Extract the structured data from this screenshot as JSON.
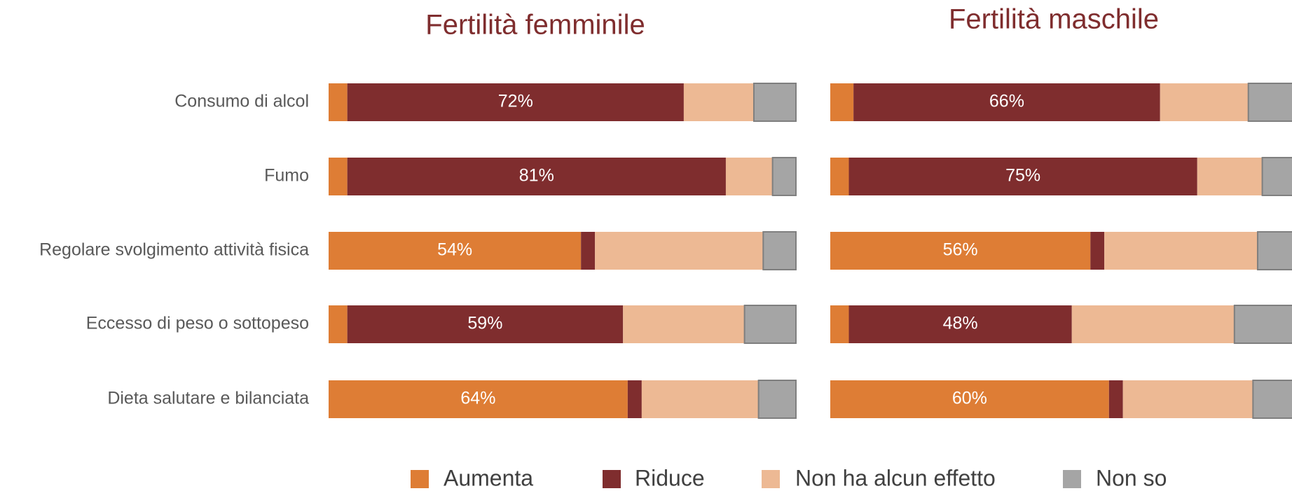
{
  "chart_data": [
    {
      "type": "bar",
      "title": "Fertilità femminile",
      "xlim": [
        0,
        100
      ],
      "categories": [
        "Consumo di alcol",
        "Fumo",
        "Regolare svolgimento attività fisica",
        "Eccesso di peso o sottopeso",
        "Dieta salutare e bilanciata"
      ],
      "series": [
        {
          "name": "Aumenta",
          "color": "#de7d35",
          "values": [
            4,
            4,
            54,
            4,
            64
          ],
          "value_labels": [
            null,
            null,
            "54%",
            null,
            "64%"
          ]
        },
        {
          "name": "Riduce",
          "color": "#7f2d2e",
          "values": [
            72,
            81,
            3,
            59,
            3
          ],
          "value_labels": [
            "72%",
            "81%",
            null,
            "59%",
            null
          ]
        },
        {
          "name": "Non ha alcun effetto",
          "color": "#edb994",
          "values": [
            15,
            10,
            36,
            26,
            25
          ]
        },
        {
          "name": "Non so",
          "color": "#a5a5a5",
          "values": [
            9,
            5,
            7,
            11,
            8
          ]
        }
      ]
    },
    {
      "type": "bar",
      "title": "Fertilità maschile",
      "xlim": [
        0,
        100
      ],
      "series": [
        {
          "color": "#de7d35",
          "values": [
            5,
            4,
            56,
            4,
            60
          ],
          "value_labels": [
            null,
            null,
            "56%",
            null,
            "60%"
          ]
        },
        {
          "color": "#7f2d2e",
          "values": [
            66,
            75,
            3,
            48,
            3
          ],
          "value_labels": [
            "66%",
            "75%",
            null,
            "48%",
            null
          ]
        },
        {
          "color": "#edb994",
          "values": [
            19,
            14,
            33,
            35,
            28
          ]
        },
        {
          "color": "#a5a5a5",
          "values": [
            10,
            7,
            8,
            13,
            9
          ]
        }
      ]
    }
  ]
}
